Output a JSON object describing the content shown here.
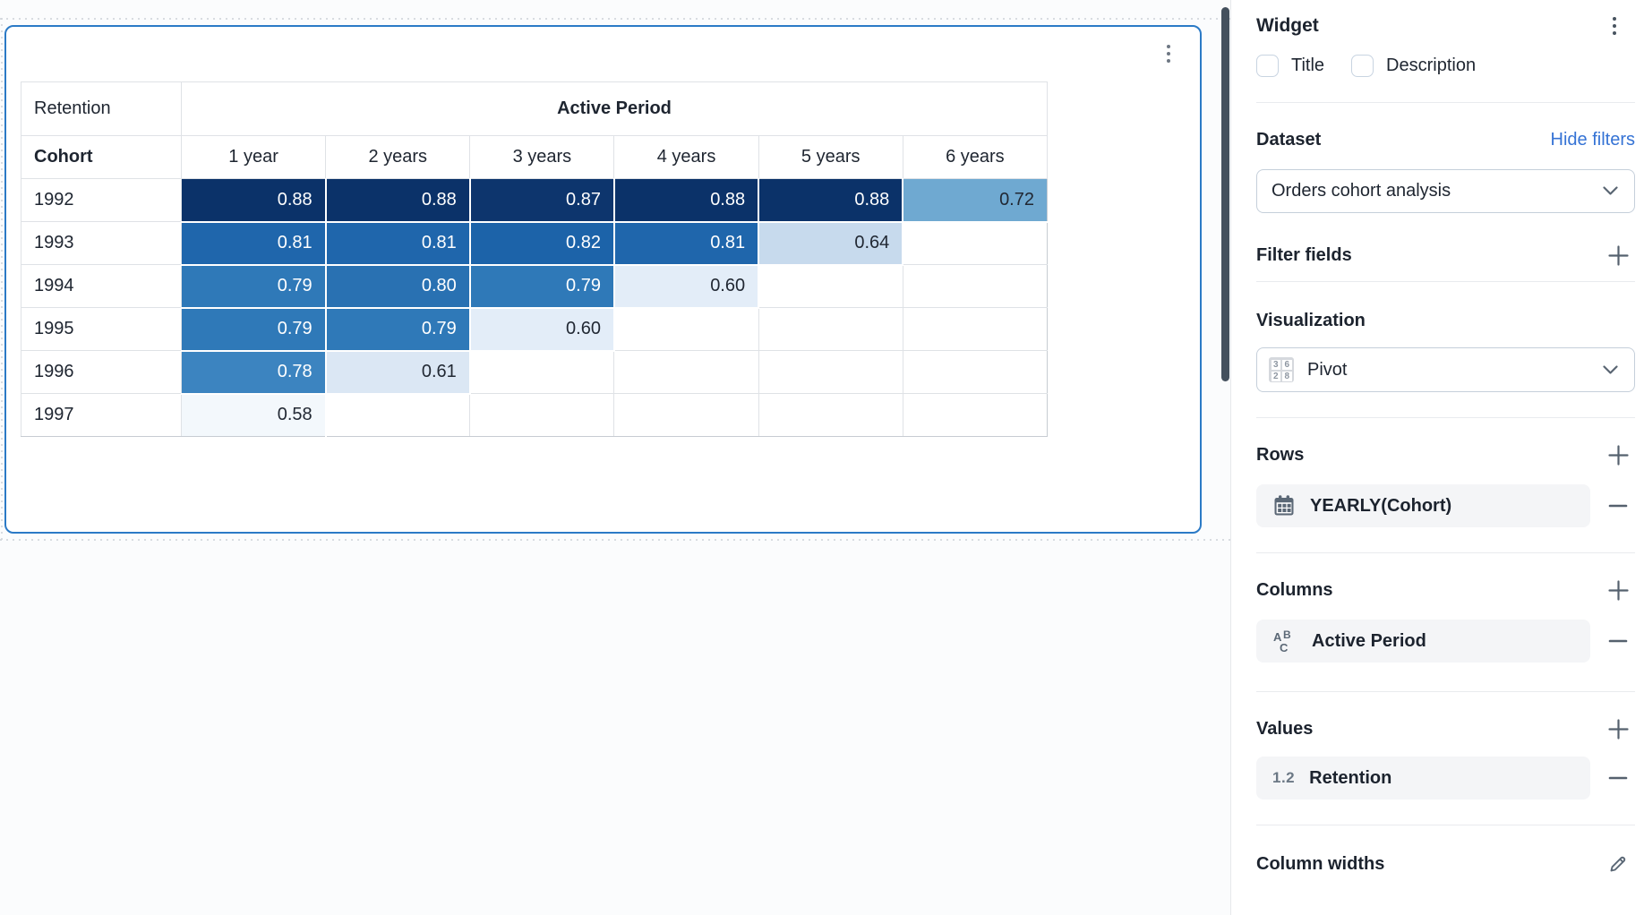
{
  "colors": {
    "widget_border": "#2b7ac6",
    "link_blue": "#3573d5",
    "scrollbar": "#44505d",
    "icon_slate": "#5b6876",
    "chip_bg": "#f4f5f7",
    "grid_line": "#dfe2e6"
  },
  "canvas": {
    "widget_menu_icon": "kebab-menu-icon"
  },
  "chart_data": {
    "type": "table",
    "title": "Retention",
    "column_group_label": "Active Period",
    "row_header": "Cohort",
    "columns": [
      "1 year",
      "2 years",
      "3 years",
      "4 years",
      "5 years",
      "6 years"
    ],
    "rows": [
      {
        "cohort": "1992",
        "values": [
          "0.88",
          "0.88",
          "0.87",
          "0.88",
          "0.88",
          "0.72"
        ]
      },
      {
        "cohort": "1993",
        "values": [
          "0.81",
          "0.81",
          "0.82",
          "0.81",
          "0.64",
          null
        ]
      },
      {
        "cohort": "1994",
        "values": [
          "0.79",
          "0.80",
          "0.79",
          "0.60",
          null,
          null
        ]
      },
      {
        "cohort": "1995",
        "values": [
          "0.79",
          "0.79",
          "0.60",
          null,
          null,
          null
        ]
      },
      {
        "cohort": "1996",
        "values": [
          "0.78",
          "0.61",
          null,
          null,
          null,
          null
        ]
      },
      {
        "cohort": "1997",
        "values": [
          "0.58",
          null,
          null,
          null,
          null,
          null
        ]
      }
    ],
    "heatmap": {
      "0.88": {
        "bg": "#0b3269",
        "fg": "#ffffff"
      },
      "0.87": {
        "bg": "#0d356d",
        "fg": "#ffffff"
      },
      "0.82": {
        "bg": "#1c63a9",
        "fg": "#ffffff"
      },
      "0.81": {
        "bg": "#1f66ac",
        "fg": "#ffffff"
      },
      "0.80": {
        "bg": "#2971b2",
        "fg": "#ffffff"
      },
      "0.79": {
        "bg": "#2f79b8",
        "fg": "#ffffff"
      },
      "0.78": {
        "bg": "#3c84c0",
        "fg": "#ffffff"
      },
      "0.72": {
        "bg": "#6fa9d1",
        "fg": "#212833"
      },
      "0.64": {
        "bg": "#c7daed",
        "fg": "#212833"
      },
      "0.61": {
        "bg": "#dbe7f4",
        "fg": "#212833"
      },
      "0.60": {
        "bg": "#e3edf8",
        "fg": "#212833"
      },
      "0.58": {
        "bg": "#f3f8fc",
        "fg": "#212833"
      }
    }
  },
  "sidebar": {
    "title": "Widget",
    "checkboxes": [
      {
        "label": "Title",
        "checked": false
      },
      {
        "label": "Description",
        "checked": false
      }
    ],
    "dataset": {
      "heading": "Dataset",
      "link": "Hide filters",
      "selected": "Orders cohort analysis"
    },
    "filter_fields": {
      "heading": "Filter fields"
    },
    "visualization": {
      "heading": "Visualization",
      "selected": "Pivot",
      "icon_numbers": [
        "3",
        "6",
        "2",
        "8"
      ]
    },
    "rows_section": {
      "heading": "Rows",
      "field": "YEARLY(Cohort)"
    },
    "columns_section": {
      "heading": "Columns",
      "field": "Active Period"
    },
    "values_section": {
      "heading": "Values",
      "field": "Retention",
      "icon_label": "1.2"
    },
    "column_widths": {
      "heading": "Column widths"
    }
  }
}
